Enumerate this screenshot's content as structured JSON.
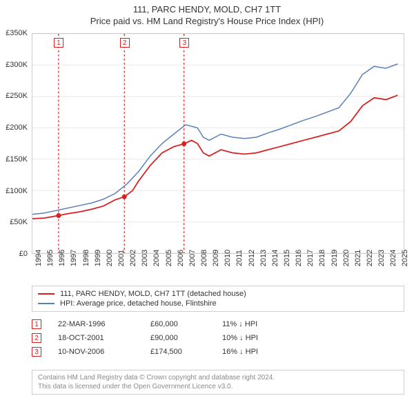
{
  "header": {
    "line1": "111, PARC HENDY, MOLD, CH7 1TT",
    "line2": "Price paid vs. HM Land Registry's House Price Index (HPI)"
  },
  "chart": {
    "type": "line",
    "background_color": "#ffffff",
    "border_color": "#cccccc",
    "x_years": [
      1994,
      1995,
      1996,
      1997,
      1998,
      1999,
      2000,
      2001,
      2002,
      2003,
      2004,
      2005,
      2006,
      2007,
      2008,
      2009,
      2010,
      2011,
      2012,
      2013,
      2014,
      2015,
      2016,
      2017,
      2018,
      2019,
      2020,
      2021,
      2022,
      2023,
      2024,
      2025
    ],
    "x_min": 1994,
    "x_max": 2025.5,
    "ylim": [
      0,
      350000
    ],
    "y_ticks": [
      0,
      50000,
      100000,
      150000,
      200000,
      250000,
      300000,
      350000
    ],
    "y_tick_labels": [
      "£0",
      "£50K",
      "£100K",
      "£150K",
      "£200K",
      "£250K",
      "£300K",
      "£350K"
    ],
    "tick_font_size": 11,
    "gridline_color": "#e8e8e8",
    "series_red": {
      "label": "111, PARC HENDY, MOLD, CH7 1TT (detached house)",
      "color": "#d92020",
      "line_width": 1.8,
      "data": [
        [
          1994.0,
          55000
        ],
        [
          1995.0,
          56000
        ],
        [
          1996.22,
          60000
        ],
        [
          1997.0,
          63000
        ],
        [
          1998.0,
          66000
        ],
        [
          1999.0,
          70000
        ],
        [
          2000.0,
          75000
        ],
        [
          2001.0,
          85000
        ],
        [
          2001.8,
          90000
        ],
        [
          2002.5,
          100000
        ],
        [
          2003.0,
          115000
        ],
        [
          2004.0,
          140000
        ],
        [
          2005.0,
          160000
        ],
        [
          2006.0,
          170000
        ],
        [
          2006.86,
          174500
        ],
        [
          2007.5,
          180000
        ],
        [
          2008.0,
          175000
        ],
        [
          2008.5,
          160000
        ],
        [
          2009.0,
          155000
        ],
        [
          2010.0,
          165000
        ],
        [
          2011.0,
          160000
        ],
        [
          2012.0,
          158000
        ],
        [
          2013.0,
          160000
        ],
        [
          2014.0,
          165000
        ],
        [
          2015.0,
          170000
        ],
        [
          2016.0,
          175000
        ],
        [
          2017.0,
          180000
        ],
        [
          2018.0,
          185000
        ],
        [
          2019.0,
          190000
        ],
        [
          2020.0,
          195000
        ],
        [
          2021.0,
          210000
        ],
        [
          2022.0,
          235000
        ],
        [
          2023.0,
          248000
        ],
        [
          2024.0,
          245000
        ],
        [
          2025.0,
          252000
        ]
      ]
    },
    "series_blue": {
      "label": "HPI: Average price, detached house, Flintshire",
      "color": "#5b7fb5",
      "line_width": 1.5,
      "data": [
        [
          1994.0,
          62000
        ],
        [
          1995.0,
          64000
        ],
        [
          1996.0,
          68000
        ],
        [
          1997.0,
          72000
        ],
        [
          1998.0,
          76000
        ],
        [
          1999.0,
          80000
        ],
        [
          2000.0,
          86000
        ],
        [
          2001.0,
          95000
        ],
        [
          2002.0,
          110000
        ],
        [
          2003.0,
          130000
        ],
        [
          2004.0,
          155000
        ],
        [
          2005.0,
          175000
        ],
        [
          2006.0,
          190000
        ],
        [
          2007.0,
          205000
        ],
        [
          2008.0,
          200000
        ],
        [
          2008.5,
          185000
        ],
        [
          2009.0,
          180000
        ],
        [
          2010.0,
          190000
        ],
        [
          2011.0,
          185000
        ],
        [
          2012.0,
          183000
        ],
        [
          2013.0,
          185000
        ],
        [
          2014.0,
          192000
        ],
        [
          2015.0,
          198000
        ],
        [
          2016.0,
          205000
        ],
        [
          2017.0,
          212000
        ],
        [
          2018.0,
          218000
        ],
        [
          2019.0,
          225000
        ],
        [
          2020.0,
          232000
        ],
        [
          2021.0,
          255000
        ],
        [
          2022.0,
          285000
        ],
        [
          2023.0,
          298000
        ],
        [
          2024.0,
          295000
        ],
        [
          2025.0,
          302000
        ]
      ]
    },
    "markers": [
      {
        "n": "1",
        "year": 1996.22,
        "value": 60000,
        "color": "#d92020"
      },
      {
        "n": "2",
        "year": 2001.8,
        "value": 90000,
        "color": "#d92020"
      },
      {
        "n": "3",
        "year": 2006.86,
        "value": 174500,
        "color": "#d92020"
      }
    ]
  },
  "legend": {
    "items": [
      {
        "color": "#d92020",
        "text": "111, PARC HENDY, MOLD, CH7 1TT (detached house)"
      },
      {
        "color": "#5b7fb5",
        "text": "HPI: Average price, detached house, Flintshire"
      }
    ]
  },
  "events": [
    {
      "n": "1",
      "color": "#d92020",
      "date": "22-MAR-1996",
      "price": "£60,000",
      "diff": "11% ↓ HPI"
    },
    {
      "n": "2",
      "color": "#d92020",
      "date": "18-OCT-2001",
      "price": "£90,000",
      "diff": "10% ↓ HPI"
    },
    {
      "n": "3",
      "color": "#d92020",
      "date": "10-NOV-2006",
      "price": "£174,500",
      "diff": "16% ↓ HPI"
    }
  ],
  "footer": {
    "line1": "Contains HM Land Registry data © Crown copyright and database right 2024.",
    "line2": "This data is licensed under the Open Government Licence v3.0."
  }
}
